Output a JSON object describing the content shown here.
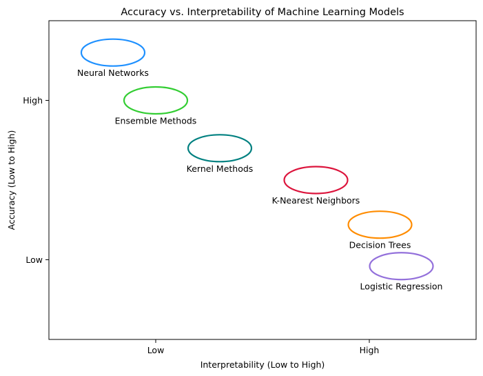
{
  "chart_data": {
    "type": "scatter",
    "title": "Accuracy vs. Interpretability of Machine Learning Models",
    "xlabel": "Interpretability (Low to High)",
    "ylabel": "Accuracy (Low to High)",
    "xlim": [
      0,
      10
    ],
    "ylim": [
      0,
      10
    ],
    "xticks": [
      {
        "value": 2.5,
        "label": "Low"
      },
      {
        "value": 7.5,
        "label": "High"
      }
    ],
    "yticks": [
      {
        "value": 2.5,
        "label": "Low"
      },
      {
        "value": 7.5,
        "label": "High"
      }
    ],
    "grid": false,
    "legend": "none",
    "points": [
      {
        "label": "Neural Networks",
        "x": 1.5,
        "y": 9.0,
        "color": "#1E90FF"
      },
      {
        "label": "Ensemble Methods",
        "x": 2.5,
        "y": 7.5,
        "color": "#32CD32"
      },
      {
        "label": "Kernel Methods",
        "x": 4.0,
        "y": 6.0,
        "color": "#008080"
      },
      {
        "label": "K-Nearest Neighbors",
        "x": 6.25,
        "y": 5.0,
        "color": "#DC143C"
      },
      {
        "label": "Decision Trees",
        "x": 7.75,
        "y": 3.6,
        "color": "#FF8C00"
      },
      {
        "label": "Logistic Regression",
        "x": 8.25,
        "y": 2.3,
        "color": "#9370DB"
      }
    ]
  }
}
